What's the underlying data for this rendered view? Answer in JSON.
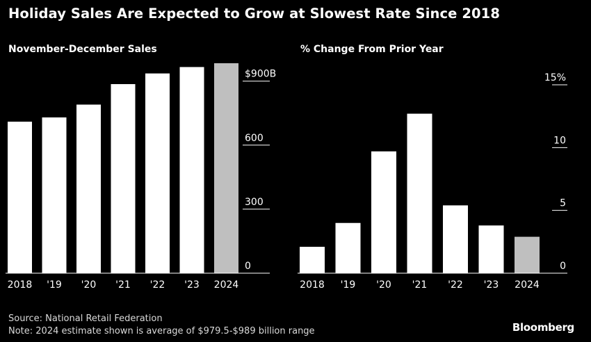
{
  "title": "Holiday Sales Are Expected to Grow at Slowest Rate Since 2018",
  "colors": {
    "bar": "#ffffff",
    "estimate": "#bfbfbf",
    "background": "#000000"
  },
  "chart_data": [
    {
      "type": "bar",
      "title": "November-December Sales",
      "categories": [
        "2018",
        "'19",
        "'20",
        "'21",
        "'22",
        "'23",
        "2024"
      ],
      "values": [
        710,
        730,
        790,
        886,
        936,
        966,
        984
      ],
      "estimate_index": 6,
      "ylim": [
        0,
        1000
      ],
      "ticks": [
        {
          "value": 0,
          "label": "0"
        },
        {
          "value": 300,
          "label": "300"
        },
        {
          "value": 600,
          "label": "600"
        },
        {
          "value": 900,
          "label": "$900B"
        }
      ],
      "xlabel": "",
      "ylabel": ""
    },
    {
      "type": "bar",
      "title": "% Change From Prior Year",
      "categories": [
        "2018",
        "'19",
        "'20",
        "'21",
        "'22",
        "'23",
        "2024"
      ],
      "values": [
        2.1,
        4.0,
        9.7,
        12.7,
        5.4,
        3.8,
        2.9
      ],
      "estimate_index": 6,
      "ylim": [
        0,
        15
      ],
      "ticks": [
        {
          "value": 0,
          "label": "0"
        },
        {
          "value": 5,
          "label": "5"
        },
        {
          "value": 10,
          "label": "10"
        },
        {
          "value": 15,
          "label": "15%"
        }
      ],
      "xlabel": "",
      "ylabel": ""
    }
  ],
  "footer": {
    "source": "Source: National Retail Federation",
    "note": "Note: 2024 estimate shown is average of $979.5-$989 billion range",
    "brand": "Bloomberg"
  }
}
